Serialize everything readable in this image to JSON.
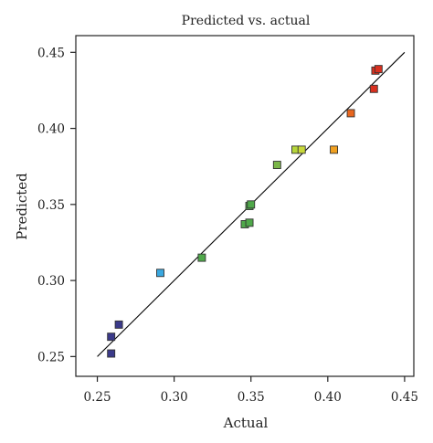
{
  "chart_data": {
    "type": "scatter",
    "title": "Predicted vs. actual",
    "xlabel": "Actual",
    "ylabel": "Predicted",
    "xlim": [
      0.236,
      0.456
    ],
    "ylim": [
      0.237,
      0.461
    ],
    "xticks": [
      "0.25",
      "0.30",
      "0.35",
      "0.40",
      "0.45"
    ],
    "yticks": [
      "0.25",
      "0.30",
      "0.35",
      "0.40",
      "0.45"
    ],
    "grid": false,
    "reference_line": {
      "from": [
        0.25,
        0.25
      ],
      "to": [
        0.45,
        0.45
      ],
      "color": "#000000"
    },
    "points": [
      {
        "x": 0.259,
        "y": 0.263,
        "color": "#3b3a8a"
      },
      {
        "x": 0.259,
        "y": 0.252,
        "color": "#3b3a8a"
      },
      {
        "x": 0.264,
        "y": 0.271,
        "color": "#3b3a8a"
      },
      {
        "x": 0.291,
        "y": 0.305,
        "color": "#3aa8e0"
      },
      {
        "x": 0.318,
        "y": 0.315,
        "color": "#4fa84a"
      },
      {
        "x": 0.346,
        "y": 0.337,
        "color": "#4fa84a"
      },
      {
        "x": 0.349,
        "y": 0.338,
        "color": "#4fa84a"
      },
      {
        "x": 0.349,
        "y": 0.349,
        "color": "#4fa84a"
      },
      {
        "x": 0.35,
        "y": 0.35,
        "color": "#4fa84a"
      },
      {
        "x": 0.367,
        "y": 0.376,
        "color": "#7ab648"
      },
      {
        "x": 0.379,
        "y": 0.386,
        "color": "#b5d53a"
      },
      {
        "x": 0.383,
        "y": 0.386,
        "color": "#c8d83a"
      },
      {
        "x": 0.404,
        "y": 0.386,
        "color": "#f0a020"
      },
      {
        "x": 0.415,
        "y": 0.41,
        "color": "#e8661e"
      },
      {
        "x": 0.43,
        "y": 0.426,
        "color": "#d9301f"
      },
      {
        "x": 0.431,
        "y": 0.438,
        "color": "#d9301f"
      },
      {
        "x": 0.433,
        "y": 0.439,
        "color": "#d9301f"
      }
    ]
  }
}
